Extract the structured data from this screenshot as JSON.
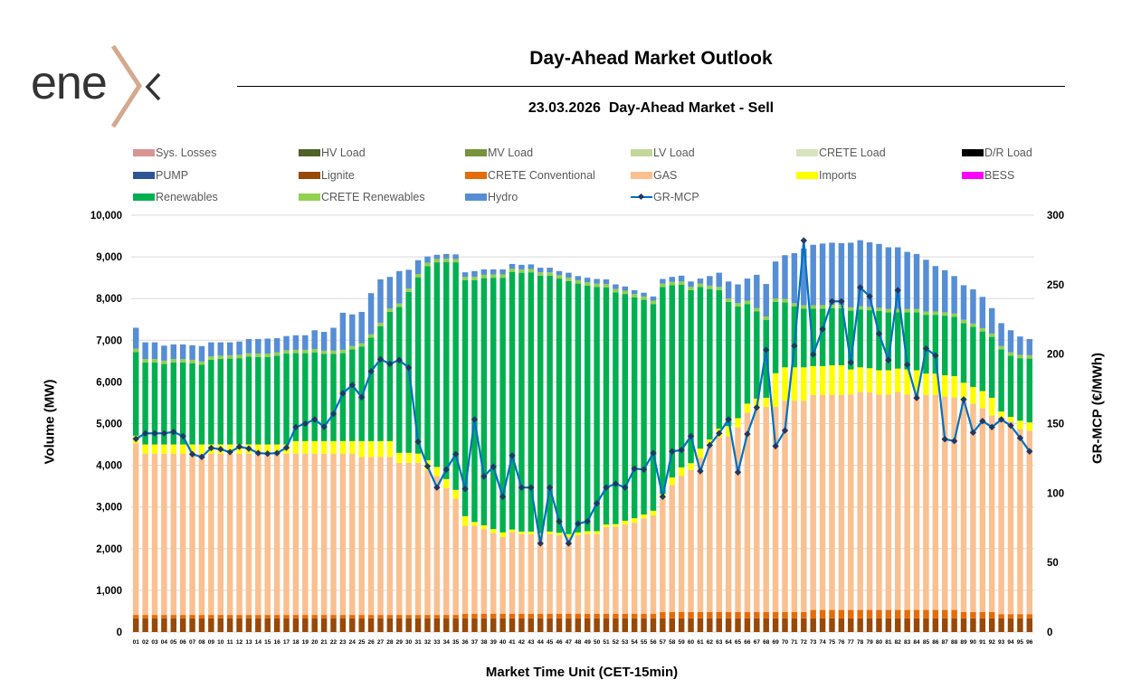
{
  "logo": {
    "text": "enex"
  },
  "header": {
    "title": "Day-Ahead Market Outlook",
    "subtitle": "23.03.2026  Day-Ahead Market - Sell"
  },
  "legend": [
    {
      "name": "Sys. Losses",
      "color": "#d99594"
    },
    {
      "name": "HV Load",
      "color": "#4f6228"
    },
    {
      "name": "MV Load",
      "color": "#77933c"
    },
    {
      "name": "LV Load",
      "color": "#c3d69b"
    },
    {
      "name": "CRETE Load",
      "color": "#d7e4bd"
    },
    {
      "name": "D/R Load",
      "color": "#000000"
    },
    {
      "name": "PUMP",
      "color": "#2f5597"
    },
    {
      "name": "Lignite",
      "color": "#984807"
    },
    {
      "name": "CRETE Conventional",
      "color": "#e46c0a"
    },
    {
      "name": "GAS",
      "color": "#fac090"
    },
    {
      "name": "Imports",
      "color": "#ffff00"
    },
    {
      "name": "BESS",
      "color": "#ff00ff"
    },
    {
      "name": "Renewables",
      "color": "#00b050"
    },
    {
      "name": "CRETE Renewables",
      "color": "#92d050"
    },
    {
      "name": "Hydro",
      "color": "#558ed5"
    },
    {
      "name": "GR-MCP",
      "color": "#0070c0",
      "type": "line"
    }
  ],
  "chart_data": {
    "type": "bar",
    "stacked": true,
    "title": "23.03.2026  Day-Ahead Market - Sell",
    "xlabel": "Market Time Unit (CET-15min)",
    "ylabel": "Volume (MW)",
    "y2label": "GR-MCP (€/MWh)",
    "ylim": [
      0,
      10000
    ],
    "y2lim": [
      0,
      300
    ],
    "yticks": [
      "0",
      "1,000",
      "2,000",
      "3,000",
      "4,000",
      "5,000",
      "6,000",
      "7,000",
      "8,000",
      "9,000",
      "10,000"
    ],
    "y2ticks": [
      "0",
      "50",
      "100",
      "150",
      "200",
      "250",
      "300"
    ],
    "grid": true,
    "legend_position": "top",
    "categories": [
      "01",
      "02",
      "03",
      "04",
      "05",
      "06",
      "07",
      "08",
      "09",
      "10",
      "11",
      "12",
      "13",
      "14",
      "15",
      "16",
      "17",
      "18",
      "19",
      "20",
      "21",
      "22",
      "23",
      "24",
      "25",
      "26",
      "27",
      "28",
      "29",
      "30",
      "31",
      "32",
      "33",
      "34",
      "35",
      "36",
      "37",
      "38",
      "39",
      "40",
      "41",
      "42",
      "43",
      "44",
      "45",
      "46",
      "47",
      "48",
      "49",
      "50",
      "51",
      "52",
      "53",
      "54",
      "55",
      "56",
      "57",
      "58",
      "59",
      "60",
      "61",
      "62",
      "63",
      "64",
      "65",
      "66",
      "67",
      "68",
      "69",
      "70",
      "71",
      "72",
      "73",
      "74",
      "75",
      "76",
      "77",
      "78",
      "79",
      "80",
      "81",
      "82",
      "83",
      "84",
      "85",
      "86",
      "87",
      "88",
      "89",
      "90",
      "91",
      "92",
      "93",
      "94",
      "95",
      "96"
    ],
    "series": [
      {
        "name": "Lignite",
        "color": "#984807",
        "values": [
          330,
          330,
          330,
          330,
          330,
          330,
          330,
          330,
          330,
          330,
          330,
          330,
          330,
          330,
          330,
          330,
          330,
          330,
          330,
          330,
          330,
          330,
          330,
          330,
          330,
          330,
          330,
          330,
          330,
          330,
          330,
          330,
          330,
          330,
          330,
          330,
          330,
          330,
          330,
          330,
          330,
          330,
          330,
          330,
          330,
          330,
          330,
          330,
          330,
          330,
          330,
          330,
          330,
          330,
          330,
          330,
          330,
          330,
          330,
          330,
          330,
          330,
          330,
          330,
          330,
          330,
          330,
          330,
          330,
          330,
          330,
          330,
          330,
          330,
          330,
          330,
          330,
          330,
          330,
          330,
          330,
          330,
          330,
          330,
          330,
          330,
          330,
          330,
          330,
          330,
          330,
          330,
          330,
          330,
          330,
          330
        ]
      },
      {
        "name": "CRETE Conventional",
        "color": "#e46c0a",
        "values": [
          80,
          80,
          80,
          80,
          80,
          80,
          80,
          80,
          80,
          80,
          80,
          80,
          80,
          80,
          80,
          80,
          80,
          80,
          80,
          80,
          80,
          80,
          80,
          80,
          80,
          80,
          80,
          80,
          80,
          80,
          80,
          80,
          80,
          80,
          80,
          110,
          110,
          110,
          110,
          110,
          110,
          110,
          110,
          110,
          110,
          110,
          110,
          110,
          110,
          110,
          110,
          110,
          110,
          110,
          110,
          110,
          150,
          150,
          150,
          150,
          150,
          150,
          150,
          150,
          150,
          150,
          150,
          150,
          150,
          150,
          150,
          150,
          200,
          200,
          200,
          200,
          200,
          200,
          200,
          200,
          200,
          200,
          200,
          200,
          200,
          200,
          200,
          200,
          150,
          150,
          150,
          150,
          100,
          100,
          100,
          100
        ]
      },
      {
        "name": "GAS",
        "color": "#fac090",
        "values": [
          4120,
          3870,
          3870,
          3870,
          3870,
          3870,
          3870,
          3870,
          3870,
          3870,
          3870,
          3870,
          3870,
          3870,
          3870,
          3870,
          3870,
          3870,
          3870,
          3870,
          3870,
          3870,
          3870,
          3870,
          3790,
          3790,
          3790,
          3790,
          3650,
          3650,
          3650,
          3470,
          3330,
          3040,
          2790,
          2110,
          2110,
          2030,
          1940,
          1840,
          1960,
          1910,
          1910,
          1880,
          1910,
          1880,
          1840,
          1880,
          1910,
          1910,
          2080,
          2090,
          2140,
          2180,
          2290,
          2360,
          2720,
          3050,
          3270,
          3410,
          3700,
          3990,
          4200,
          4220,
          4430,
          4780,
          4920,
          4920,
          4920,
          5070,
          5070,
          5070,
          5160,
          5160,
          5160,
          5160,
          5170,
          5230,
          5220,
          5170,
          5170,
          5230,
          5170,
          5170,
          5160,
          5160,
          5120,
          5100,
          5070,
          5000,
          4890,
          4720,
          4720,
          4620,
          4440,
          4400
        ]
      },
      {
        "name": "Imports",
        "color": "#ffff00",
        "values": [
          180,
          220,
          220,
          220,
          220,
          220,
          220,
          220,
          220,
          220,
          220,
          220,
          220,
          220,
          220,
          220,
          220,
          300,
          300,
          300,
          300,
          300,
          300,
          300,
          380,
          380,
          380,
          380,
          240,
          240,
          220,
          240,
          220,
          220,
          210,
          230,
          90,
          90,
          90,
          110,
          60,
          60,
          60,
          50,
          60,
          60,
          70,
          70,
          70,
          70,
          60,
          60,
          90,
          110,
          90,
          110,
          110,
          180,
          200,
          160,
          220,
          150,
          200,
          240,
          220,
          220,
          200,
          220,
          810,
          800,
          800,
          800,
          690,
          690,
          710,
          710,
          600,
          590,
          580,
          580,
          580,
          560,
          600,
          580,
          510,
          510,
          510,
          510,
          430,
          400,
          410,
          420,
          140,
          110,
          200,
          200
        ]
      },
      {
        "name": "Renewables",
        "color": "#00b050",
        "values": [
          2010,
          1970,
          1970,
          1930,
          1970,
          1970,
          1950,
          1910,
          2030,
          2050,
          2060,
          2070,
          2110,
          2100,
          2100,
          2130,
          2180,
          2110,
          2110,
          2130,
          2090,
          2090,
          2110,
          2200,
          2270,
          2480,
          2760,
          3100,
          3500,
          3860,
          4230,
          4660,
          4910,
          5210,
          5460,
          5660,
          5800,
          5930,
          6030,
          6110,
          6180,
          6210,
          6220,
          6180,
          6140,
          6100,
          6070,
          5970,
          5890,
          5860,
          5690,
          5560,
          5440,
          5300,
          5150,
          4960,
          4970,
          4610,
          4380,
          4150,
          3880,
          3610,
          3320,
          2980,
          2680,
          2390,
          2090,
          1870,
          1710,
          1560,
          1460,
          1410,
          1380,
          1380,
          1370,
          1370,
          1410,
          1390,
          1390,
          1420,
          1390,
          1350,
          1370,
          1390,
          1410,
          1410,
          1430,
          1420,
          1430,
          1440,
          1430,
          1460,
          1490,
          1470,
          1500,
          1530
        ]
      },
      {
        "name": "CRETE Renewables",
        "color": "#92d050",
        "values": [
          80,
          80,
          80,
          80,
          80,
          80,
          80,
          80,
          80,
          80,
          80,
          80,
          80,
          80,
          80,
          80,
          80,
          80,
          80,
          80,
          80,
          80,
          80,
          80,
          80,
          80,
          80,
          80,
          80,
          80,
          80,
          80,
          80,
          80,
          80,
          80,
          80,
          80,
          80,
          80,
          80,
          80,
          80,
          80,
          80,
          80,
          80,
          80,
          80,
          80,
          80,
          80,
          80,
          80,
          80,
          80,
          80,
          80,
          80,
          80,
          80,
          80,
          80,
          80,
          80,
          80,
          80,
          80,
          80,
          80,
          80,
          80,
          80,
          80,
          80,
          80,
          80,
          80,
          80,
          80,
          80,
          80,
          80,
          80,
          80,
          80,
          80,
          80,
          80,
          80,
          80,
          80,
          80,
          80,
          80,
          80
        ]
      },
      {
        "name": "Hydro",
        "color": "#558ed5",
        "values": [
          500,
          400,
          400,
          360,
          350,
          350,
          350,
          370,
          340,
          320,
          310,
          320,
          340,
          350,
          360,
          340,
          340,
          350,
          350,
          450,
          450,
          550,
          890,
          760,
          750,
          990,
          1040,
          760,
          780,
          450,
          330,
          150,
          100,
          110,
          110,
          110,
          140,
          130,
          120,
          120,
          110,
          110,
          110,
          110,
          110,
          100,
          120,
          100,
          110,
          110,
          110,
          110,
          100,
          90,
          90,
          100,
          110,
          120,
          140,
          130,
          120,
          230,
          340,
          410,
          450,
          530,
          800,
          780,
          890,
          1050,
          1200,
          1360,
          1450,
          1480,
          1490,
          1480,
          1550,
          1580,
          1550,
          1530,
          1480,
          1480,
          1370,
          1320,
          1240,
          1090,
          1010,
          900,
          830,
          820,
          750,
          610,
          550,
          530,
          440,
          390
        ]
      }
    ],
    "line": {
      "name": "GR-MCP",
      "axis": "right",
      "color": "#0070c0",
      "values": [
        139,
        143,
        143,
        143,
        144,
        141,
        128,
        126,
        132.5,
        131.6,
        129.5,
        133.4,
        132,
        128.8,
        128.4,
        128.8,
        132.7,
        147.5,
        150,
        153,
        147.7,
        157,
        171.8,
        177.8,
        169,
        187.6,
        196.3,
        193,
        195.7,
        190.2,
        137,
        119.3,
        104,
        117,
        128,
        103,
        153,
        112,
        119,
        97.4,
        127,
        104,
        104,
        63.8,
        104,
        79.6,
        63.8,
        78,
        79.6,
        92.6,
        104,
        106.7,
        104,
        117.6,
        117,
        128.8,
        97.4,
        130,
        131,
        141,
        115.8,
        134.5,
        143,
        153,
        115,
        142.5,
        161.6,
        203,
        133.8,
        145,
        206,
        281.8,
        199.8,
        218,
        238,
        238,
        194,
        248,
        241.6,
        214.7,
        195.7,
        246,
        192.4,
        168.5,
        204,
        199,
        138.8,
        137.5,
        167.4,
        143.6,
        151.8,
        147.5,
        153,
        148.6,
        139.7,
        130
      ]
    }
  }
}
